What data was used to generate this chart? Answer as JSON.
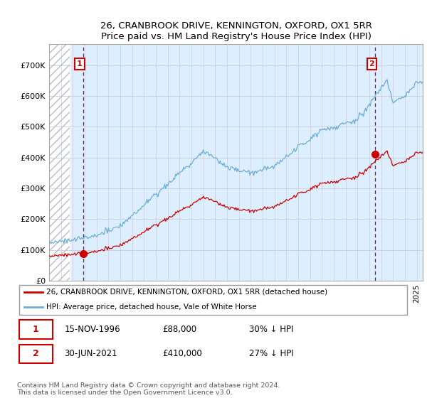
{
  "title": "26, CRANBROOK DRIVE, KENNINGTON, OXFORD, OX1 5RR",
  "subtitle": "Price paid vs. HM Land Registry's House Price Index (HPI)",
  "xlim": [
    1994.0,
    2025.5
  ],
  "ylim": [
    0,
    770000
  ],
  "yticks": [
    0,
    100000,
    200000,
    300000,
    400000,
    500000,
    600000,
    700000
  ],
  "ytick_labels": [
    "£0",
    "£100K",
    "£200K",
    "£300K",
    "£400K",
    "£500K",
    "£600K",
    "£700K"
  ],
  "sale1_date": 1996.88,
  "sale1_price": 88000,
  "sale2_date": 2021.5,
  "sale2_price": 410000,
  "hpi_color": "#6baed6",
  "price_color": "#cc0000",
  "box_color": "#cc0000",
  "bg_color": "#ddeeff",
  "hatch_color": "#bbbbcc",
  "legend_entry1": "26, CRANBROOK DRIVE, KENNINGTON, OXFORD, OX1 5RR (detached house)",
  "legend_entry2": "HPI: Average price, detached house, Vale of White Horse",
  "table_row1": [
    "1",
    "15-NOV-1996",
    "£88,000",
    "30% ↓ HPI"
  ],
  "table_row2": [
    "2",
    "30-JUN-2021",
    "£410,000",
    "27% ↓ HPI"
  ],
  "footnote": "Contains HM Land Registry data © Crown copyright and database right 2024.\nThis data is licensed under the Open Government Licence v3.0.",
  "hatch_end": 1995.75,
  "grid_color": "#ccccdd"
}
